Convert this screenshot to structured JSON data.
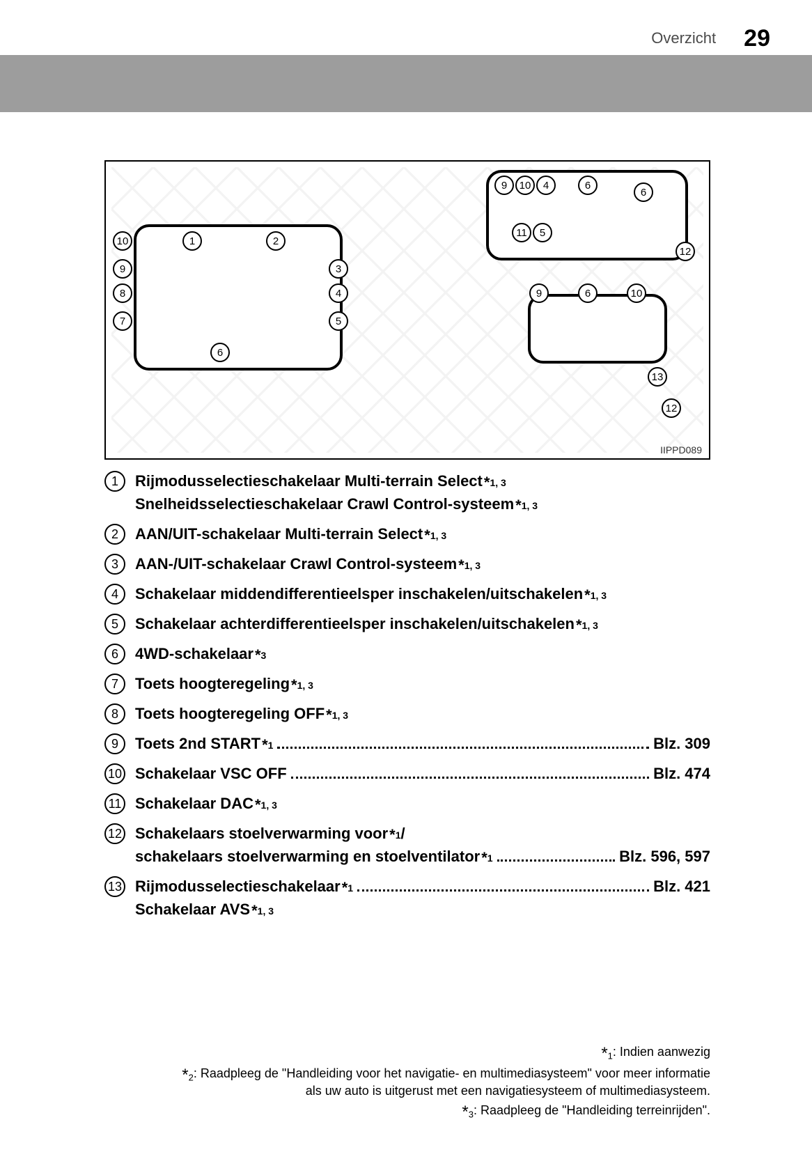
{
  "header": {
    "section": "Overzicht",
    "page_number": "29"
  },
  "diagram": {
    "code": "IIPPD089",
    "callouts_left": [
      "1",
      "2",
      "3",
      "4",
      "5",
      "6",
      "7",
      "8",
      "9",
      "10"
    ],
    "callouts_right": [
      "4",
      "5",
      "6",
      "6",
      "9",
      "9",
      "10",
      "10",
      "11",
      "12",
      "12",
      "13",
      "6"
    ]
  },
  "items": [
    {
      "num": "1",
      "lines": [
        {
          "label": "Rijmodusselectieschakelaar Multi-terrain Select",
          "sup": "*1, 3"
        },
        {
          "label": "Snelheidsselectieschakelaar Crawl Control-systeem",
          "sup": "*1, 3"
        }
      ]
    },
    {
      "num": "2",
      "lines": [
        {
          "label": "AAN/UIT-schakelaar Multi-terrain Select",
          "sup": "*1, 3"
        }
      ]
    },
    {
      "num": "3",
      "lines": [
        {
          "label": "AAN-/UIT-schakelaar Crawl Control-systeem",
          "sup": "*1, 3"
        }
      ]
    },
    {
      "num": "4",
      "lines": [
        {
          "label": "Schakelaar middendifferentieelsper inschakelen/uitschakelen",
          "sup": "*1, 3"
        }
      ]
    },
    {
      "num": "5",
      "lines": [
        {
          "label": "Schakelaar achterdifferentieelsper inschakelen/uitschakelen",
          "sup": "*1, 3"
        }
      ]
    },
    {
      "num": "6",
      "lines": [
        {
          "label": "4WD-schakelaar",
          "sup": "*3"
        }
      ]
    },
    {
      "num": "7",
      "lines": [
        {
          "label": "Toets hoogteregeling",
          "sup": "*1, 3"
        }
      ]
    },
    {
      "num": "8",
      "lines": [
        {
          "label": "Toets hoogteregeling OFF",
          "sup": "*1, 3"
        }
      ]
    },
    {
      "num": "9",
      "lines": [
        {
          "label": "Toets 2nd START",
          "sup": "*1",
          "page": "Blz. 309"
        }
      ]
    },
    {
      "num": "10",
      "lines": [
        {
          "label": "Schakelaar VSC OFF",
          "page": "Blz. 474"
        }
      ]
    },
    {
      "num": "11",
      "lines": [
        {
          "label": "Schakelaar DAC",
          "sup": "*1, 3"
        }
      ]
    },
    {
      "num": "12",
      "lines": [
        {
          "label": "Schakelaars stoelverwarming voor",
          "sup": "*1",
          "trail": "/"
        },
        {
          "label": "schakelaars stoelverwarming en stoelventilator",
          "sup": "*1",
          "page": "Blz. 596, 597"
        }
      ]
    },
    {
      "num": "13",
      "lines": [
        {
          "label": "Rijmodusselectieschakelaar",
          "sup": "*1",
          "page": "Blz. 421"
        },
        {
          "label": "Schakelaar AVS",
          "sup": "*1, 3"
        }
      ]
    }
  ],
  "footnotes": {
    "f1": ": Indien aanwezig",
    "f2a": ": Raadpleeg de \"Handleiding voor het navigatie- en multimediasysteem\" voor meer informatie",
    "f2b": "als uw auto is uitgerust met een navigatiesysteem of multimediasysteem.",
    "f3": ": Raadpleeg de \"Handleiding terreinrijden\"."
  }
}
